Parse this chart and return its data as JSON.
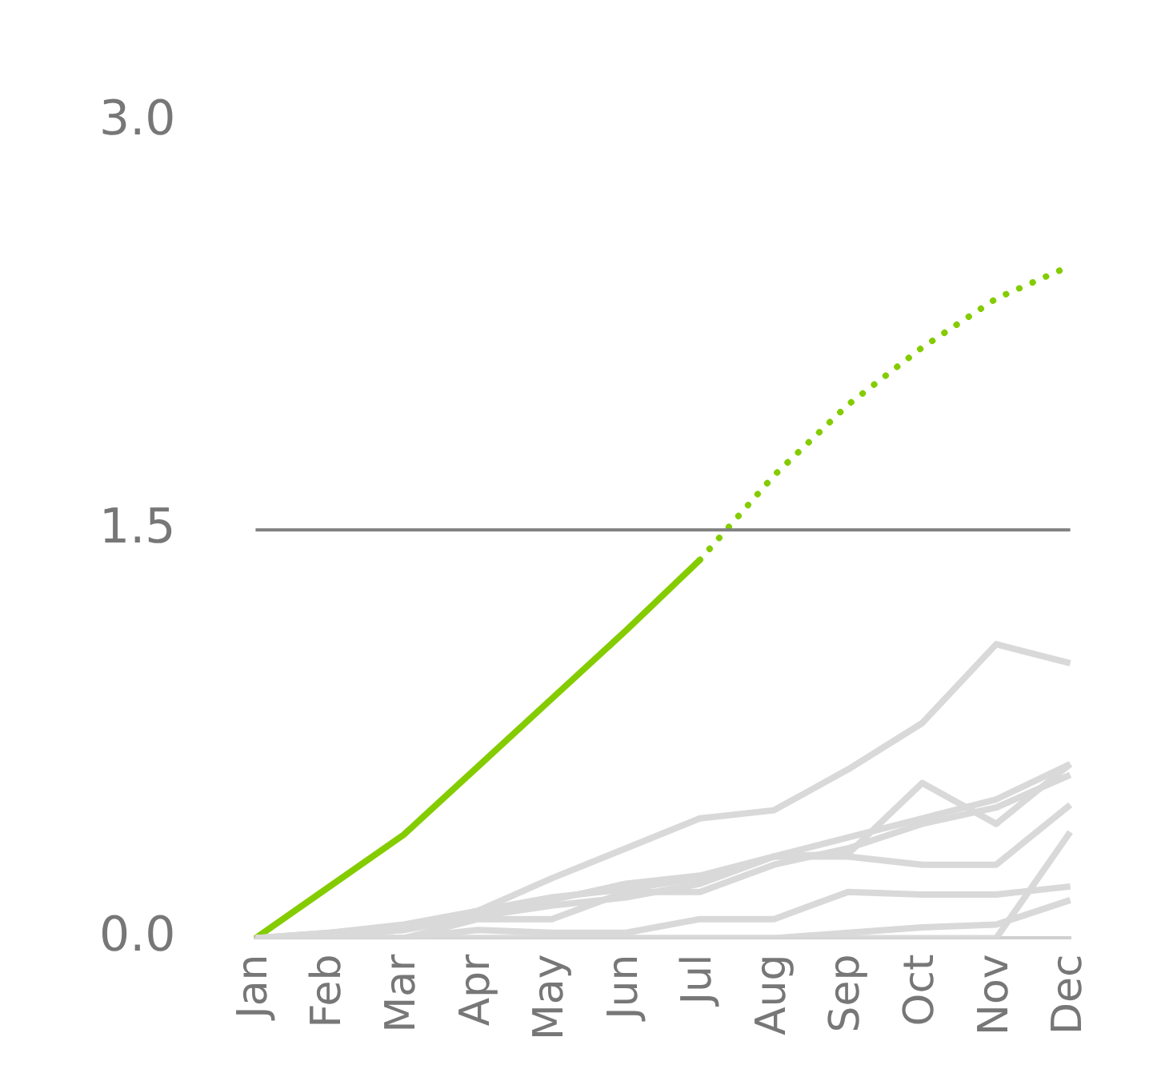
{
  "chart_data": {
    "type": "line",
    "categories": [
      "Jan",
      "Feb",
      "Mar",
      "Apr",
      "May",
      "Jun",
      "Jul",
      "Aug",
      "Sep",
      "Oct",
      "Nov",
      "Dec"
    ],
    "ylim": [
      0,
      3
    ],
    "yticks": [
      {
        "value": 0,
        "label": "0.0"
      },
      {
        "value": 1.5,
        "label": "1.5"
      },
      {
        "value": 3,
        "label": "3.0"
      }
    ],
    "grid": false,
    "legend": false,
    "marker": "none",
    "ref_lines": [
      {
        "axis": "y",
        "value": 1.5,
        "color": "#808080"
      }
    ],
    "series": [
      {
        "color": "#d9d9d9",
        "values": [
          0,
          0.02,
          0.04,
          0.1,
          0.22,
          0.33,
          0.44,
          0.47,
          0.62,
          0.79,
          1.08,
          1.01
        ]
      },
      {
        "color": "#d9d9d9",
        "values": [
          0,
          0.01,
          0.03,
          0.08,
          0.12,
          0.15,
          0.2,
          0.3,
          0.31,
          0.57,
          0.42,
          0.64
        ]
      },
      {
        "color": "#d9d9d9",
        "values": [
          0,
          0.01,
          0.03,
          0.09,
          0.14,
          0.2,
          0.23,
          0.3,
          0.3,
          0.27,
          0.27,
          0.49
        ]
      },
      {
        "color": "#d9d9d9",
        "values": [
          0,
          0.02,
          0.05,
          0.1,
          0.15,
          0.18,
          0.22,
          0.3,
          0.37,
          0.44,
          0.51,
          0.64
        ]
      },
      {
        "color": "#d9d9d9",
        "values": [
          0,
          0,
          0,
          0.07,
          0.07,
          0.17,
          0.17,
          0.27,
          0.33,
          0.42,
          0.48,
          0.6
        ]
      },
      {
        "color": "#d9d9d9",
        "values": [
          0,
          0,
          0,
          0.03,
          0.02,
          0.02,
          0.07,
          0.07,
          0.17,
          0.16,
          0.16,
          0.19
        ]
      },
      {
        "color": "#d9d9d9",
        "values": [
          0,
          0,
          0,
          0,
          0,
          0,
          0,
          0,
          0.02,
          0.04,
          0.05,
          0.14
        ]
      },
      {
        "color": "#d9d9d9",
        "values": [
          0,
          0,
          0,
          0,
          0,
          0,
          0,
          0,
          0,
          0,
          0,
          0.39
        ]
      },
      {
        "color": "#84cc00",
        "values": [
          0,
          0.19,
          0.38,
          0.63,
          0.88,
          1.13,
          1.39,
          null,
          null,
          null,
          null,
          null
        ],
        "line_style": "solid"
      },
      {
        "color": "#84cc00",
        "values": [
          null,
          null,
          null,
          null,
          null,
          null,
          1.39,
          1.7,
          1.96,
          2.17,
          2.35,
          2.47
        ],
        "line_style": "dotted"
      }
    ]
  }
}
